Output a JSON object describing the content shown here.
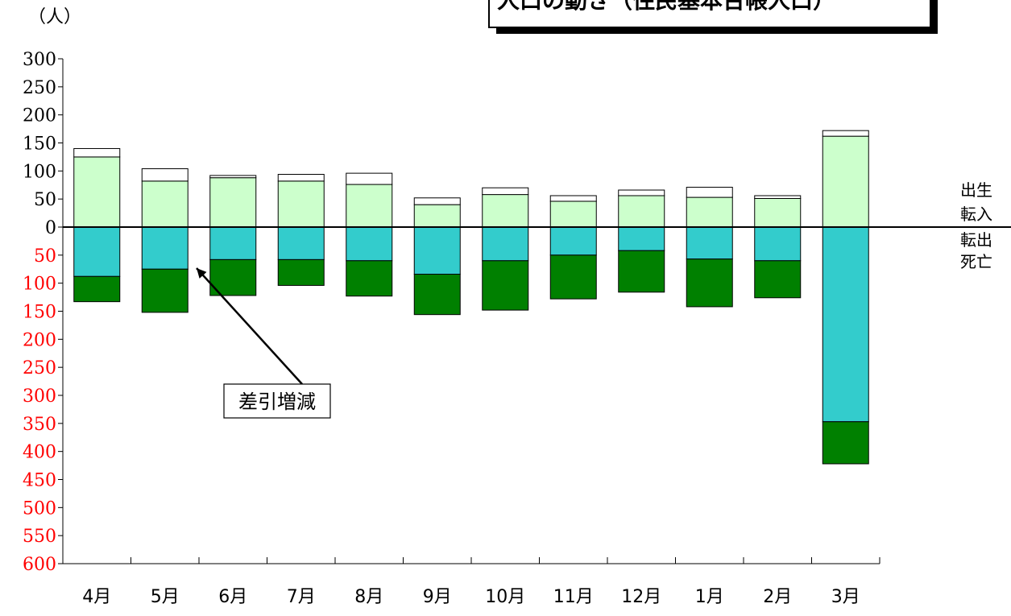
{
  "chart_data": {
    "type": "bar",
    "title": "人口の動き（住民基本台帳人口）",
    "ylabel": "（人）",
    "categories": [
      "4月",
      "5月",
      "6月",
      "7月",
      "8月",
      "9月",
      "10月",
      "11月",
      "12月",
      "1月",
      "2月",
      "3月"
    ],
    "y_positive_ticks": [
      "300",
      "250",
      "200",
      "150",
      "100",
      "50",
      "0"
    ],
    "y_negative_ticks": [
      "50",
      "100",
      "150",
      "200",
      "250",
      "300",
      "350",
      "400",
      "450",
      "500",
      "550",
      "600"
    ],
    "ylim": [
      -600,
      300
    ],
    "stacking": "stacked",
    "series": [
      {
        "name": "出生",
        "stack": "positive",
        "values": [
          15,
          22,
          4,
          12,
          20,
          12,
          12,
          10,
          10,
          18,
          5,
          10
        ]
      },
      {
        "name": "転入",
        "stack": "positive",
        "values": [
          125,
          82,
          88,
          82,
          76,
          40,
          58,
          46,
          56,
          53,
          51,
          162
        ]
      },
      {
        "name": "転出",
        "stack": "negative",
        "values": [
          -88,
          -75,
          -58,
          -58,
          -60,
          -84,
          -60,
          -50,
          -42,
          -57,
          -60,
          -347
        ]
      },
      {
        "name": "死亡",
        "stack": "negative",
        "values": [
          -45,
          -77,
          -64,
          -46,
          -63,
          -72,
          -88,
          -78,
          -74,
          -85,
          -66,
          -75
        ]
      }
    ],
    "legend": [
      "出生",
      "転入",
      "転出",
      "死亡"
    ],
    "legend_position": "right",
    "annotation": "差引増減",
    "grid": false,
    "colors": {
      "出生": "#ffffff",
      "転入": "#ccffcc",
      "転出": "#33cccc",
      "死亡": "#008000",
      "negative_tick_text": "#ff0000",
      "positive_tick_text": "#000000"
    }
  }
}
